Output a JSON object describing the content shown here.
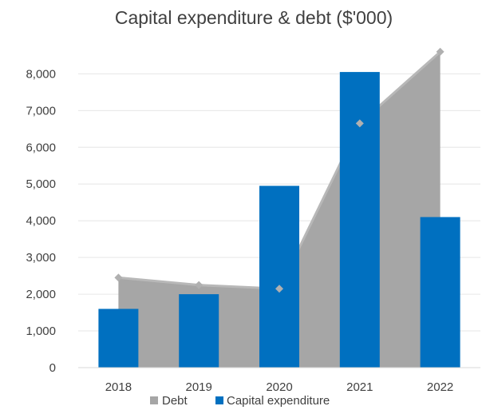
{
  "chart_data": {
    "type": "bar",
    "title": "Capital expenditure & debt ($'000)",
    "xlabel": "",
    "ylabel": "",
    "categories": [
      "2018",
      "2019",
      "2020",
      "2021",
      "2022"
    ],
    "ylim": [
      0,
      8000
    ],
    "yticks": [
      0,
      1000,
      2000,
      3000,
      4000,
      5000,
      6000,
      7000,
      8000
    ],
    "ytick_labels": [
      "0",
      "1,000",
      "2,000",
      "3,000",
      "4,000",
      "5,000",
      "6,000",
      "7,000",
      "8,000"
    ],
    "grid": true,
    "legend_position": "bottom",
    "series": [
      {
        "name": "Debt",
        "type": "area",
        "color": "#a6a6a6",
        "marker": "diamond",
        "values": [
          2450,
          2250,
          2150,
          6650,
          8600
        ]
      },
      {
        "name": "Capital expenditure",
        "type": "bar",
        "color": "#0070c0",
        "values": [
          1600,
          2000,
          4950,
          8050,
          4100
        ]
      }
    ]
  }
}
